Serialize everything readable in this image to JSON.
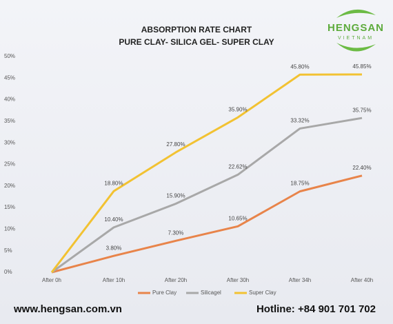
{
  "chart_data": {
    "type": "line",
    "title": "ABSORPTION  RATE  CHART",
    "subtitle": "PURE CLAY- SILICA GEL- SUPER CLAY",
    "categories": [
      "After 0h",
      "After 10h",
      "After 20h",
      "After 30h",
      "After 34h",
      "After 40h"
    ],
    "series": [
      {
        "name": "Pure Clay",
        "color": "#e8844a",
        "values": [
          0,
          3.8,
          7.3,
          10.65,
          18.75,
          22.4
        ],
        "value_labels": [
          null,
          "3.80%",
          "7.30%",
          "10.65%",
          "18.75%",
          "22.40%"
        ]
      },
      {
        "name": "Silicagel",
        "color": "#a8a8a8",
        "values": [
          0,
          10.4,
          15.9,
          22.62,
          33.32,
          35.75
        ],
        "value_labels": [
          null,
          "10.40%",
          "15.90%",
          "22.62%",
          "33.32%",
          "35.75%"
        ]
      },
      {
        "name": "Super Clay",
        "color": "#f2c232",
        "values": [
          0,
          18.8,
          27.8,
          35.9,
          45.8,
          45.85
        ],
        "value_labels": [
          null,
          "18.80%",
          "27.80%",
          "35.90%",
          "45.80%",
          "45.85%"
        ]
      }
    ],
    "ylim": [
      0,
      50
    ],
    "yticks": [
      {
        "value": 0,
        "label": "0%"
      },
      {
        "value": 5,
        "label": "5%"
      },
      {
        "value": 10,
        "label": "10%"
      },
      {
        "value": 15,
        "label": "15%"
      },
      {
        "value": 20,
        "label": "20%"
      },
      {
        "value": 25,
        "label": "25%"
      },
      {
        "value": 30,
        "label": "30%"
      },
      {
        "value": 35,
        "label": "35%"
      },
      {
        "value": 40,
        "label": "40%"
      },
      {
        "value": 45,
        "label": "45%"
      },
      {
        "value": 50,
        "label": "50%"
      }
    ],
    "legend": "bottom"
  },
  "logo": {
    "name": "HENGSAN",
    "country": "VIETNAM"
  },
  "footer": {
    "website": "www.hengsan.com.vn",
    "hotline": "Hotline:  +84 901 701 702"
  }
}
